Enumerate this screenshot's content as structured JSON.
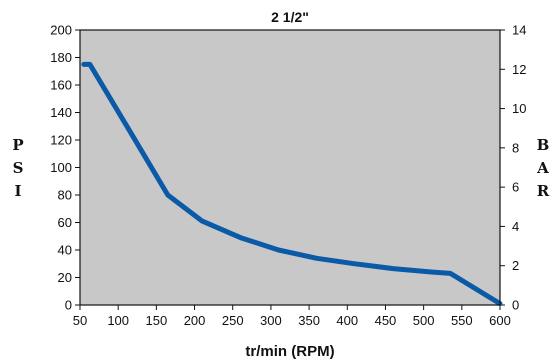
{
  "chart_data": {
    "type": "line",
    "title": "2 1/2\"",
    "xlabel": "tr/min (RPM)",
    "ylabel_left": "PSI",
    "ylabel_right": "BAR",
    "xlim": [
      50,
      600
    ],
    "ylim": [
      0,
      200
    ],
    "ylim_right": [
      0,
      14
    ],
    "x_ticks": [
      "50",
      "100",
      "150",
      "200",
      "250",
      "300",
      "350",
      "400",
      "450",
      "500",
      "550",
      "600"
    ],
    "y_ticks": [
      "0",
      "20",
      "40",
      "60",
      "80",
      "100",
      "120",
      "140",
      "160",
      "180",
      "200"
    ],
    "y_right_ticks": [
      "0",
      "2",
      "4",
      "6",
      "8",
      "10",
      "12",
      "14"
    ],
    "series": [
      {
        "x": [
          55,
          63,
          120,
          165,
          210,
          260,
          310,
          360,
          410,
          460,
          510,
          535,
          600
        ],
        "y": [
          175,
          175,
          122,
          80,
          61,
          49,
          40,
          34,
          30,
          26.5,
          24,
          23,
          1
        ]
      }
    ],
    "plot_background": "#c8c8c8",
    "line_color": "#0a5aa8",
    "grid": false,
    "legend": "none"
  }
}
